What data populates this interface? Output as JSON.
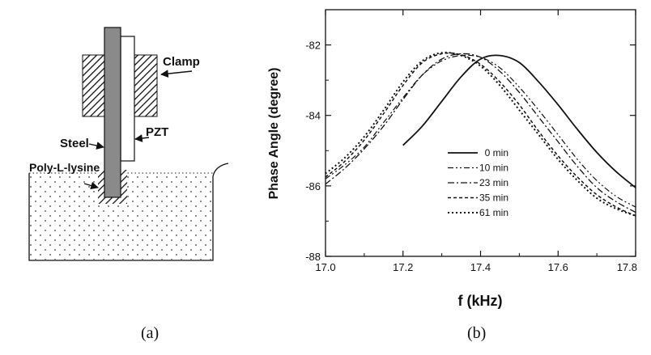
{
  "panel_a": {
    "labels": {
      "clamp": "Clamp",
      "pzt": "PZT",
      "steel": "Steel",
      "poly": "Poly-L-lysine"
    },
    "caption": "(a)"
  },
  "panel_b": {
    "caption": "(b)"
  },
  "chart_data": {
    "type": "line",
    "xlabel": "f (kHz)",
    "ylabel": "Phase Angle (degree)",
    "xlim": [
      17.0,
      17.8
    ],
    "ylim": [
      -88,
      -81
    ],
    "xticks": [
      17.0,
      17.2,
      17.4,
      17.6,
      17.8
    ],
    "xtick_labels": [
      "17.0",
      "17.2",
      "17.4",
      "17.6",
      "17.8"
    ],
    "yticks": [
      -88,
      -86,
      -84,
      -82
    ],
    "ytick_labels": [
      "-88",
      "-86",
      "-84",
      "-82"
    ],
    "grid": false,
    "legend_position": "lower-center",
    "series": [
      {
        "name": "0 min",
        "dash": "solid",
        "x": [
          17.2,
          17.25,
          17.3,
          17.35,
          17.4,
          17.45,
          17.5,
          17.55,
          17.6,
          17.65,
          17.7,
          17.75,
          17.8
        ],
        "y": [
          -84.85,
          -84.3,
          -83.6,
          -82.9,
          -82.4,
          -82.3,
          -82.5,
          -83.05,
          -83.7,
          -84.4,
          -85.05,
          -85.6,
          -86.05
        ]
      },
      {
        "name": "10 min",
        "dash": "dashdotdot",
        "x": [
          17.0,
          17.05,
          17.1,
          17.15,
          17.2,
          17.25,
          17.3,
          17.35,
          17.4,
          17.45,
          17.5,
          17.55,
          17.6,
          17.65,
          17.7,
          17.75,
          17.8
        ],
        "y": [
          -85.8,
          -85.4,
          -84.9,
          -84.2,
          -83.5,
          -82.85,
          -82.45,
          -82.3,
          -82.35,
          -82.65,
          -83.2,
          -83.85,
          -84.55,
          -85.25,
          -85.85,
          -86.3,
          -86.6
        ]
      },
      {
        "name": "23 min",
        "dash": "dashdot",
        "x": [
          17.0,
          17.05,
          17.1,
          17.15,
          17.2,
          17.25,
          17.3,
          17.35,
          17.4,
          17.45,
          17.5,
          17.55,
          17.6,
          17.65,
          17.7,
          17.75,
          17.8
        ],
        "y": [
          -85.95,
          -85.5,
          -84.95,
          -84.3,
          -83.55,
          -82.85,
          -82.4,
          -82.25,
          -82.35,
          -82.75,
          -83.35,
          -84.05,
          -84.75,
          -85.45,
          -86.05,
          -86.45,
          -86.75
        ]
      },
      {
        "name": "35 min",
        "dash": "dash",
        "x": [
          17.0,
          17.05,
          17.1,
          17.15,
          17.2,
          17.25,
          17.3,
          17.35,
          17.4,
          17.45,
          17.5,
          17.55,
          17.6,
          17.65,
          17.7,
          17.75,
          17.8
        ],
        "y": [
          -85.75,
          -85.3,
          -84.7,
          -83.95,
          -83.15,
          -82.5,
          -82.25,
          -82.28,
          -82.55,
          -83.05,
          -83.7,
          -84.45,
          -85.15,
          -85.75,
          -86.25,
          -86.6,
          -86.85
        ]
      },
      {
        "name": "61 min",
        "dash": "dot",
        "x": [
          17.0,
          17.05,
          17.1,
          17.15,
          17.2,
          17.25,
          17.3,
          17.35,
          17.4,
          17.45,
          17.5,
          17.55,
          17.6,
          17.65,
          17.7,
          17.75,
          17.8
        ],
        "y": [
          -85.65,
          -85.2,
          -84.6,
          -83.85,
          -83.05,
          -82.45,
          -82.22,
          -82.3,
          -82.6,
          -83.15,
          -83.85,
          -84.55,
          -85.25,
          -85.85,
          -86.35,
          -86.65,
          -86.85
        ]
      }
    ]
  }
}
